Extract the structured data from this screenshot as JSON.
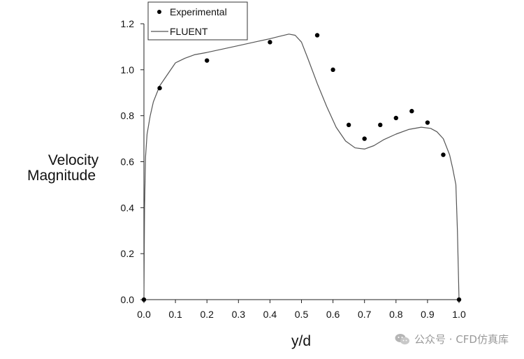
{
  "chart_data": {
    "type": "scatter",
    "xlabel": "y/d",
    "ylabel_lines": [
      "Velocity",
      "Magnitude"
    ],
    "xlim": [
      0.0,
      1.0
    ],
    "ylim": [
      0.0,
      1.2
    ],
    "xticks": [
      "0.0",
      "0.1",
      "0.2",
      "0.3",
      "0.4",
      "0.5",
      "0.6",
      "0.7",
      "0.8",
      "0.9",
      "1.0"
    ],
    "yticks": [
      "0.0",
      "0.2",
      "0.4",
      "0.6",
      "0.8",
      "1.0",
      "1.2"
    ],
    "legend_position": "top-left",
    "series": [
      {
        "name": "Experimental",
        "kind": "points",
        "color": "#000000",
        "x": [
          0.0,
          0.05,
          0.2,
          0.4,
          0.55,
          0.6,
          0.65,
          0.7,
          0.75,
          0.8,
          0.85,
          0.9,
          0.95,
          1.0
        ],
        "y": [
          0.0,
          0.92,
          1.04,
          1.12,
          1.15,
          1.0,
          0.76,
          0.7,
          0.76,
          0.79,
          0.82,
          0.77,
          0.63,
          0.0
        ]
      },
      {
        "name": "FLUENT",
        "kind": "line",
        "color": "#555555",
        "x": [
          0.0,
          0.002,
          0.005,
          0.01,
          0.02,
          0.03,
          0.05,
          0.08,
          0.1,
          0.13,
          0.16,
          0.2,
          0.25,
          0.3,
          0.35,
          0.4,
          0.43,
          0.46,
          0.48,
          0.5,
          0.52,
          0.55,
          0.58,
          0.61,
          0.64,
          0.67,
          0.7,
          0.73,
          0.76,
          0.8,
          0.84,
          0.88,
          0.91,
          0.93,
          0.95,
          0.97,
          0.98,
          0.99,
          0.995,
          1.0
        ],
        "y": [
          0.0,
          0.4,
          0.62,
          0.72,
          0.8,
          0.86,
          0.93,
          0.99,
          1.03,
          1.05,
          1.065,
          1.075,
          1.09,
          1.105,
          1.12,
          1.135,
          1.145,
          1.155,
          1.15,
          1.12,
          1.05,
          0.94,
          0.84,
          0.75,
          0.69,
          0.66,
          0.655,
          0.67,
          0.695,
          0.72,
          0.74,
          0.75,
          0.745,
          0.73,
          0.7,
          0.63,
          0.57,
          0.5,
          0.3,
          0.0
        ]
      }
    ]
  },
  "watermark": {
    "text": "公众号 · CFD仿真库"
  }
}
